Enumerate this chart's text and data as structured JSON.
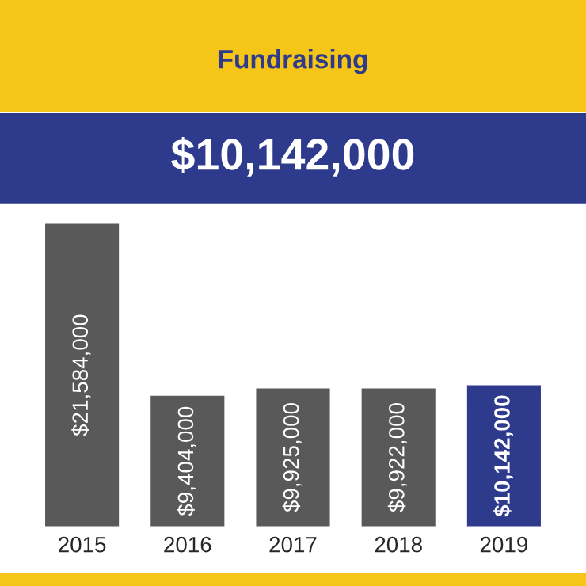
{
  "chart_data": {
    "type": "bar",
    "title": "Fundraising",
    "subtitle": "$10,142,000",
    "categories": [
      "2015",
      "2016",
      "2017",
      "2018",
      "2019"
    ],
    "values": [
      21584000,
      9404000,
      9925000,
      9922000,
      10142000
    ],
    "colors": [
      "#595959",
      "#595959",
      "#595959",
      "#595959",
      "#2e3a8c"
    ],
    "value_labels": [
      "$21,584,000",
      "$9,404,000",
      "$9,925,000",
      "$9,922,000",
      "$10,142,000"
    ],
    "grid": false,
    "legend": false
  }
}
